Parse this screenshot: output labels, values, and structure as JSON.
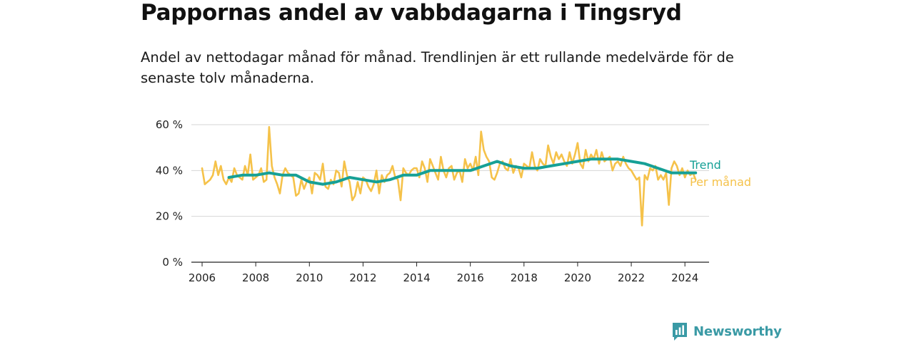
{
  "header": {
    "title": "Pappornas andel av vabbdagarna i Tingsryd",
    "subtitle": "Andel av nettodagar månad för månad. Trendlinjen är ett rullande medelvärde för de senaste tolv månaderna."
  },
  "brand": {
    "name": "Newsworthy",
    "icon": "newsworthy-logo-icon",
    "color": "#3a9aa5"
  },
  "chart_data": {
    "type": "line",
    "title": "",
    "xlabel": "",
    "ylabel": "",
    "xlim": [
      2005.6,
      2024.9
    ],
    "ylim": [
      0,
      60
    ],
    "grid": true,
    "legend_placement": "right",
    "x_ticks": [
      2006,
      2008,
      2010,
      2012,
      2014,
      2016,
      2018,
      2020,
      2022,
      2024
    ],
    "x_tick_labels": [
      "2006",
      "2008",
      "2010",
      "2012",
      "2014",
      "2016",
      "2018",
      "2020",
      "2022",
      "2024"
    ],
    "y_ticks": [
      0,
      20,
      40,
      60
    ],
    "y_tick_labels": [
      "0 %",
      "20 %",
      "40 %",
      "60 %"
    ],
    "series": [
      {
        "name": "Per månad",
        "color": "#f5c24a",
        "x": [
          2006.0,
          2006.1,
          2006.2,
          2006.3,
          2006.4,
          2006.5,
          2006.6,
          2006.7,
          2006.8,
          2006.9,
          2007.0,
          2007.1,
          2007.2,
          2007.3,
          2007.4,
          2007.5,
          2007.6,
          2007.7,
          2007.8,
          2007.9,
          2008.0,
          2008.1,
          2008.2,
          2008.3,
          2008.4,
          2008.5,
          2008.6,
          2008.7,
          2008.8,
          2008.9,
          2009.0,
          2009.1,
          2009.2,
          2009.3,
          2009.4,
          2009.5,
          2009.6,
          2009.7,
          2009.8,
          2009.9,
          2010.0,
          2010.1,
          2010.2,
          2010.3,
          2010.4,
          2010.5,
          2010.6,
          2010.7,
          2010.8,
          2010.9,
          2011.0,
          2011.1,
          2011.2,
          2011.3,
          2011.4,
          2011.5,
          2011.6,
          2011.7,
          2011.8,
          2011.9,
          2012.0,
          2012.1,
          2012.2,
          2012.3,
          2012.4,
          2012.5,
          2012.6,
          2012.7,
          2012.8,
          2012.9,
          2013.0,
          2013.1,
          2013.2,
          2013.3,
          2013.4,
          2013.5,
          2013.6,
          2013.7,
          2013.8,
          2013.9,
          2014.0,
          2014.1,
          2014.2,
          2014.3,
          2014.4,
          2014.5,
          2014.6,
          2014.7,
          2014.8,
          2014.9,
          2015.0,
          2015.1,
          2015.2,
          2015.3,
          2015.4,
          2015.5,
          2015.6,
          2015.7,
          2015.8,
          2015.9,
          2016.0,
          2016.1,
          2016.2,
          2016.3,
          2016.4,
          2016.5,
          2016.6,
          2016.7,
          2016.8,
          2016.9,
          2017.0,
          2017.1,
          2017.2,
          2017.3,
          2017.4,
          2017.5,
          2017.6,
          2017.7,
          2017.8,
          2017.9,
          2018.0,
          2018.1,
          2018.2,
          2018.3,
          2018.4,
          2018.5,
          2018.6,
          2018.7,
          2018.8,
          2018.9,
          2019.0,
          2019.1,
          2019.2,
          2019.3,
          2019.4,
          2019.5,
          2019.6,
          2019.7,
          2019.8,
          2019.9,
          2020.0,
          2020.1,
          2020.2,
          2020.3,
          2020.4,
          2020.5,
          2020.6,
          2020.7,
          2020.8,
          2020.9,
          2021.0,
          2021.1,
          2021.2,
          2021.3,
          2021.4,
          2021.5,
          2021.6,
          2021.7,
          2021.8,
          2021.9,
          2022.0,
          2022.1,
          2022.2,
          2022.3,
          2022.4,
          2022.5,
          2022.6,
          2022.7,
          2022.8,
          2022.9,
          2023.0,
          2023.1,
          2023.2,
          2023.3,
          2023.4,
          2023.5,
          2023.6,
          2023.7,
          2023.8,
          2023.9,
          2024.0,
          2024.1,
          2024.2,
          2024.3,
          2024.4
        ],
        "values": [
          41,
          34,
          35,
          36,
          38,
          44,
          38,
          42,
          36,
          34,
          37,
          35,
          41,
          38,
          37,
          36,
          42,
          38,
          47,
          36,
          37,
          38,
          41,
          35,
          36,
          59,
          42,
          37,
          34,
          30,
          38,
          41,
          39,
          38,
          37,
          29,
          30,
          36,
          32,
          35,
          37,
          30,
          39,
          38,
          36,
          43,
          33,
          32,
          36,
          34,
          40,
          39,
          33,
          44,
          38,
          35,
          27,
          29,
          35,
          30,
          37,
          36,
          33,
          31,
          34,
          40,
          30,
          38,
          35,
          38,
          39,
          42,
          37,
          36,
          27,
          41,
          39,
          38,
          40,
          41,
          41,
          37,
          44,
          41,
          35,
          45,
          42,
          39,
          36,
          46,
          40,
          37,
          41,
          42,
          36,
          39,
          40,
          35,
          45,
          41,
          43,
          40,
          46,
          38,
          57,
          49,
          46,
          44,
          37,
          36,
          39,
          43,
          44,
          41,
          40,
          45,
          39,
          42,
          41,
          37,
          43,
          42,
          41,
          48,
          42,
          40,
          45,
          43,
          42,
          51,
          46,
          43,
          48,
          45,
          47,
          44,
          42,
          48,
          43,
          47,
          52,
          43,
          41,
          49,
          44,
          47,
          45,
          49,
          43,
          48,
          44,
          45,
          46,
          40,
          43,
          44,
          42,
          46,
          43,
          41,
          40,
          38,
          36,
          37,
          16,
          38,
          36,
          41,
          40,
          42,
          36,
          38,
          36,
          39,
          25,
          41,
          44,
          42,
          38,
          41,
          37,
          40,
          38,
          39,
          36
        ]
      },
      {
        "name": "Trend",
        "color": "#16a096",
        "x": [
          2007.0,
          2007.5,
          2008.0,
          2008.5,
          2009.0,
          2009.5,
          2010.0,
          2010.5,
          2011.0,
          2011.5,
          2012.0,
          2012.5,
          2013.0,
          2013.5,
          2014.0,
          2014.5,
          2015.0,
          2015.5,
          2016.0,
          2016.5,
          2017.0,
          2017.5,
          2018.0,
          2018.5,
          2019.0,
          2019.5,
          2020.0,
          2020.5,
          2021.0,
          2021.5,
          2022.0,
          2022.5,
          2023.0,
          2023.5,
          2024.0,
          2024.4
        ],
        "values": [
          37,
          38,
          38,
          39,
          38,
          38,
          35,
          34,
          35,
          37,
          36,
          35,
          36,
          38,
          38,
          40,
          40,
          40,
          40,
          42,
          44,
          42,
          41,
          41,
          42,
          43,
          44,
          45,
          45,
          45,
          44,
          43,
          41,
          39,
          39,
          39
        ]
      }
    ]
  }
}
